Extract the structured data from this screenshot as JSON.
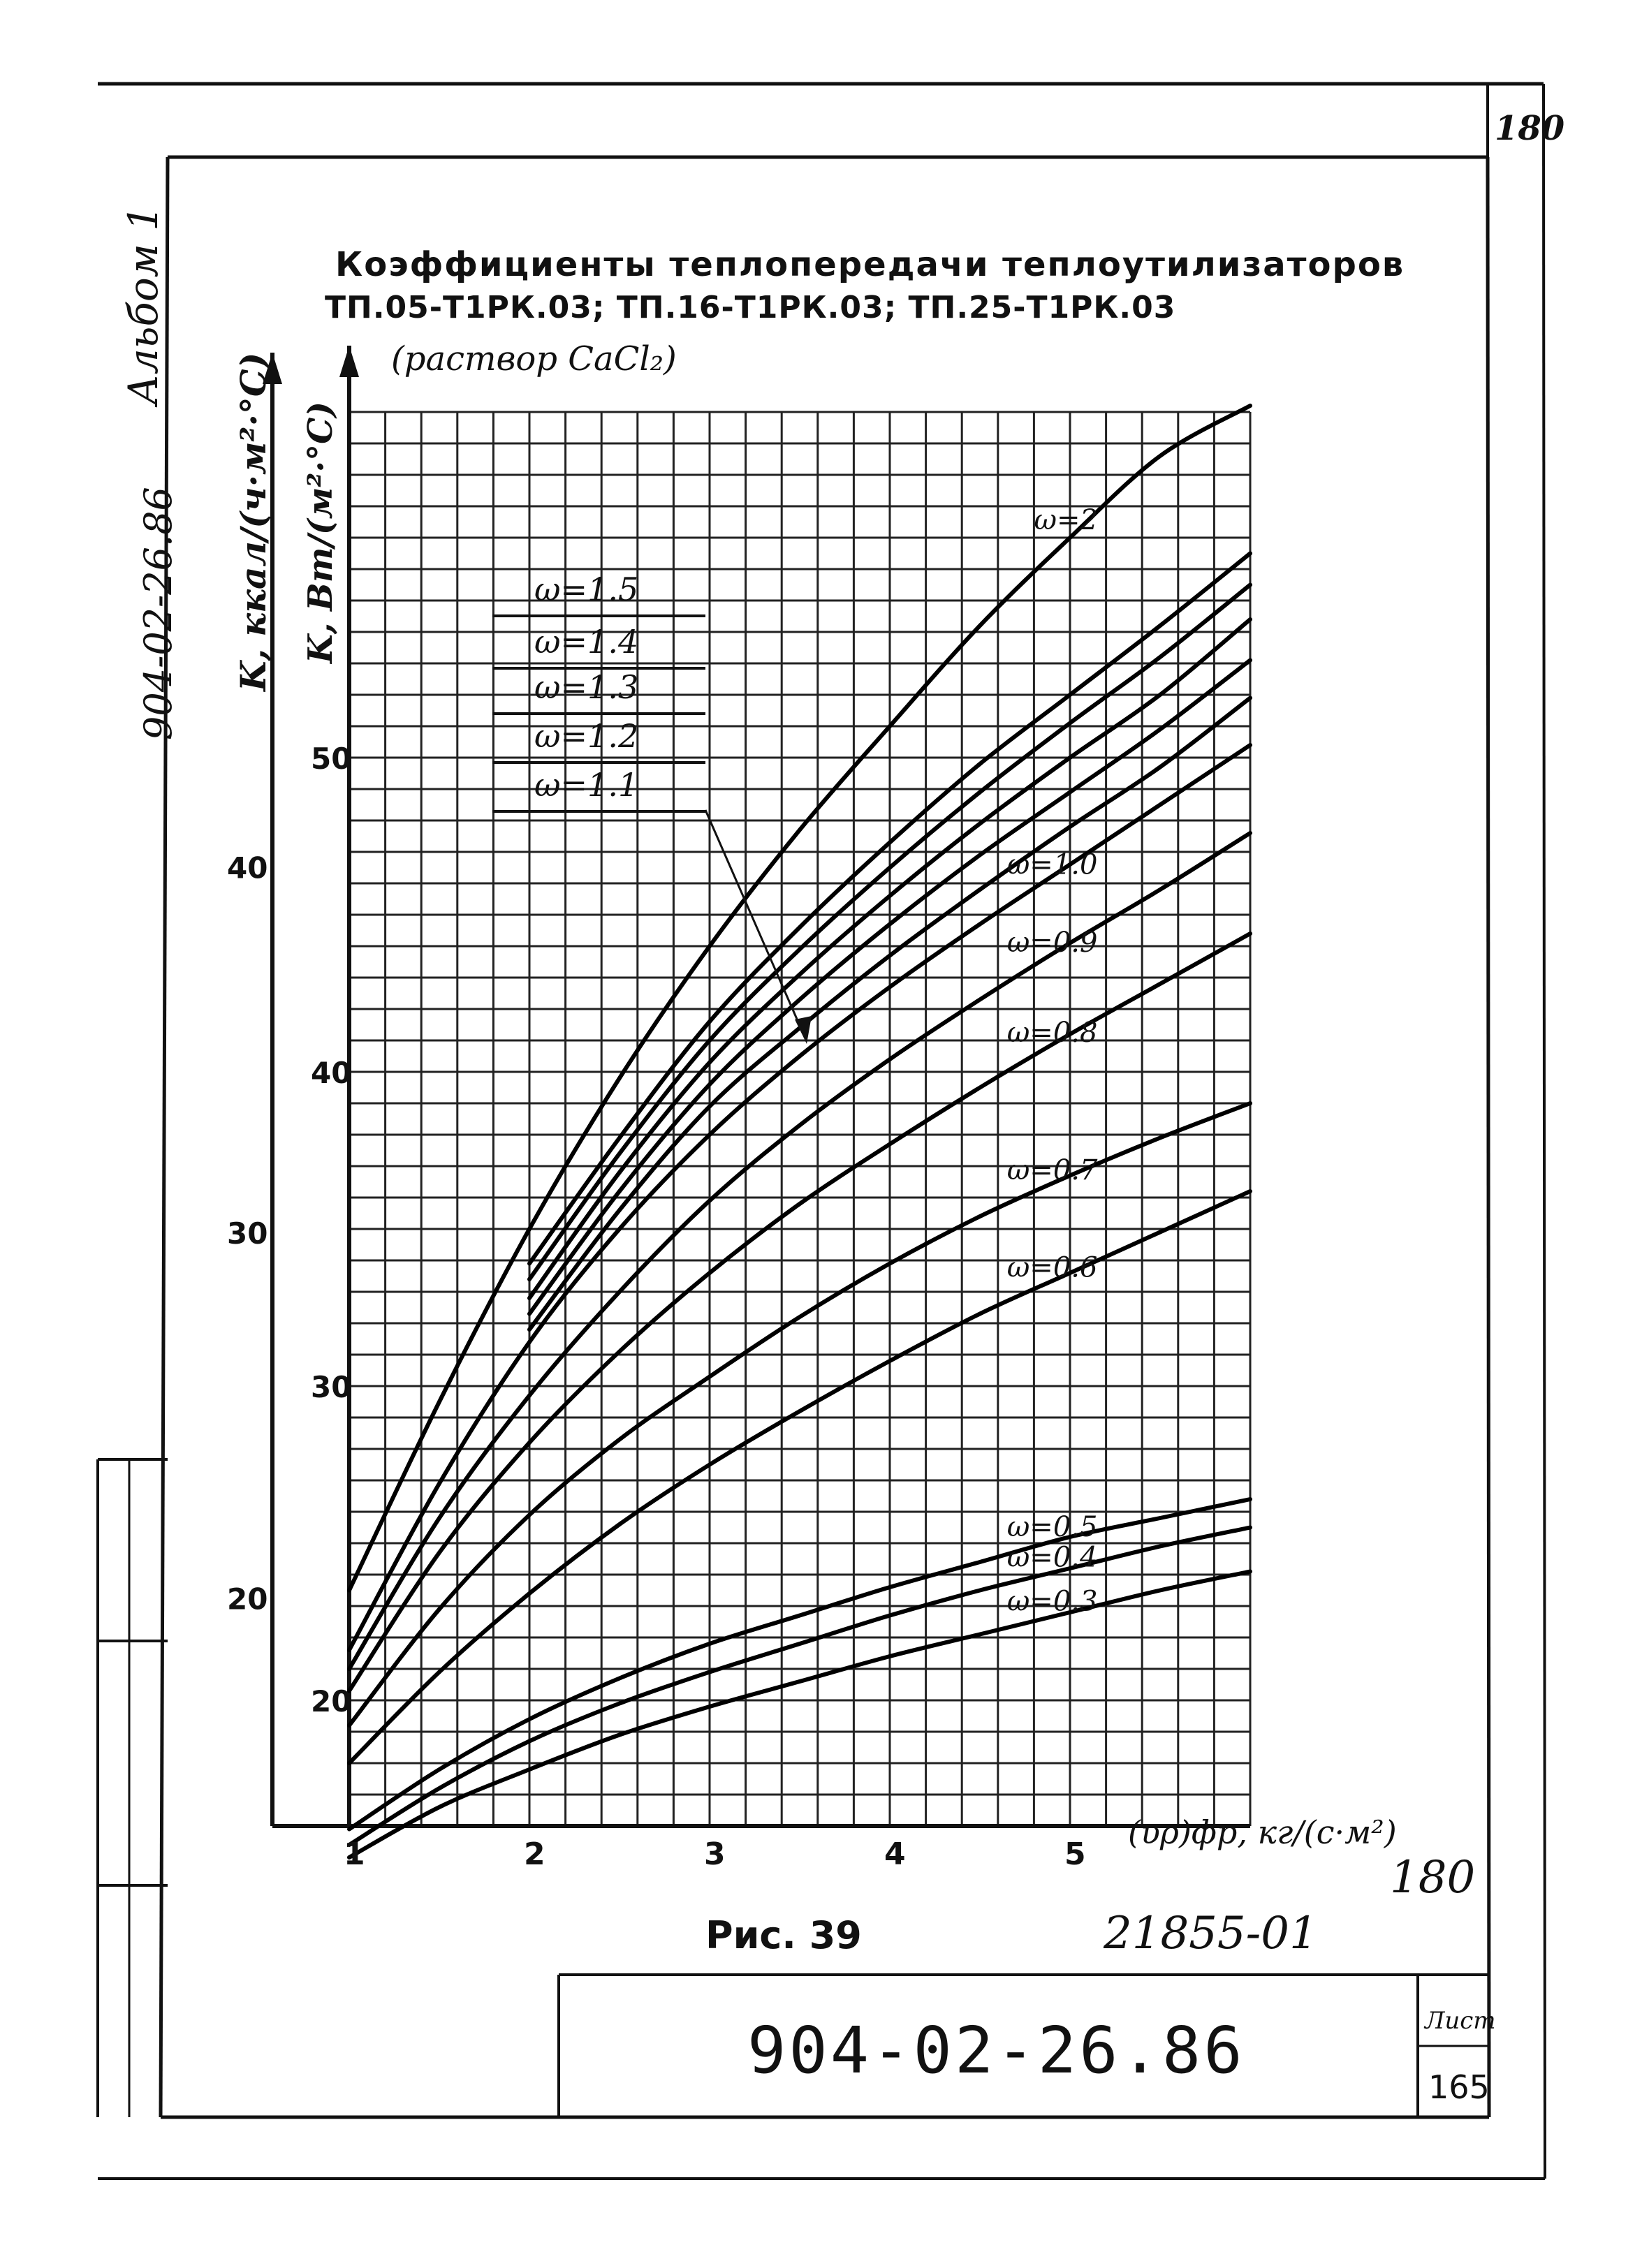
{
  "sheet": {
    "corner_number": "180",
    "album": "Альбом 1",
    "side_code": "904-02-26.86",
    "doc_code": "904-02-26.86",
    "list_label": "Лист",
    "list_number": "165",
    "inv_number": "21855-01",
    "handwritten_number": "180"
  },
  "chart_data": {
    "type": "line",
    "title": "Коэффициенты теплопередачи теплоутилизаторов",
    "subtitle": "ТП.05-Т1РК.03; ТП.16-Т1РК.03; ТП.25-Т1РК.03",
    "note": "(раствор CaCl₂)",
    "figure_label": "Рис. 39",
    "xlabel": "(υρ)фр, кг/(с·м²)",
    "ylabel_inner": "K, Вт/(м²·°C)",
    "ylabel_outer": "K, ккал/(ч·м²·°C)",
    "xlim": [
      1,
      6
    ],
    "ylim_w": [
      16,
      61
    ],
    "x_ticks": [
      "1",
      "2",
      "3",
      "4",
      "5"
    ],
    "y_ticks_w": [
      {
        "value": 20,
        "label": "20"
      },
      {
        "value": 30,
        "label": "30"
      },
      {
        "value": 40,
        "label": "40"
      },
      {
        "value": 50,
        "label": "50"
      }
    ],
    "y_ticks_kcal": [
      {
        "value": 20,
        "label": "20"
      },
      {
        "value": 30,
        "label": "30"
      },
      {
        "value": 40,
        "label": "40"
      }
    ],
    "grid": true,
    "series": [
      {
        "name": "ω=2",
        "x": [
          1,
          1.5,
          2,
          2.5,
          3,
          3.5,
          4,
          4.5,
          5,
          5.5,
          6
        ],
        "y": [
          23.5,
          29.5,
          35.0,
          39.8,
          44.0,
          47.7,
          51.0,
          54.2,
          57.0,
          59.6,
          61.2
        ]
      },
      {
        "name": "ω=1.5",
        "x": [
          2,
          2.5,
          3,
          3.5,
          4,
          4.5,
          5,
          5.5,
          6
        ],
        "y": [
          33.9,
          37.9,
          41.6,
          44.6,
          47.3,
          49.8,
          52.0,
          54.2,
          56.5
        ]
      },
      {
        "name": "ω=1.4",
        "x": [
          2,
          2.5,
          3,
          3.5,
          4,
          4.5,
          5,
          5.5,
          6
        ],
        "y": [
          33.4,
          37.4,
          41.0,
          43.9,
          46.5,
          48.9,
          51.1,
          53.2,
          55.5
        ]
      },
      {
        "name": "ω=1.3",
        "x": [
          2,
          2.5,
          3,
          3.5,
          4,
          4.5,
          5,
          5.5,
          6
        ],
        "y": [
          32.8,
          36.8,
          40.3,
          43.1,
          45.6,
          47.9,
          50.0,
          52.0,
          54.4
        ]
      },
      {
        "name": "ω=1.2",
        "x": [
          2,
          2.5,
          3,
          3.5,
          4,
          4.5,
          5,
          5.5,
          6
        ],
        "y": [
          32.3,
          36.2,
          39.6,
          42.3,
          44.7,
          46.9,
          48.9,
          50.9,
          53.1
        ]
      },
      {
        "name": "ω=1.1",
        "x": [
          2,
          2.5,
          3,
          3.5,
          4,
          4.5,
          5,
          5.5,
          6
        ],
        "y": [
          31.8,
          35.6,
          38.9,
          41.4,
          43.7,
          45.8,
          47.8,
          49.7,
          51.9
        ]
      },
      {
        "name": "ω=1.0",
        "x": [
          1,
          1.5,
          2,
          2.5,
          3,
          3.5,
          4,
          4.5,
          5,
          5.5,
          6
        ],
        "y": [
          21.6,
          26.9,
          31.4,
          35.0,
          38.0,
          40.5,
          42.7,
          44.7,
          46.6,
          48.5,
          50.4
        ]
      },
      {
        "name": "ω=0.9",
        "x": [
          1,
          1.5,
          2,
          2.5,
          3,
          3.5,
          4,
          4.5,
          5,
          5.5,
          6
        ],
        "y": [
          21.0,
          25.8,
          29.7,
          33.0,
          35.9,
          38.3,
          40.4,
          42.3,
          44.1,
          45.8,
          47.6
        ]
      },
      {
        "name": "ω=0.8",
        "x": [
          1,
          1.5,
          2,
          2.5,
          3,
          3.5,
          4,
          4.5,
          5,
          5.5,
          6
        ],
        "y": [
          20.3,
          24.7,
          28.2,
          31.1,
          33.6,
          35.8,
          37.7,
          39.5,
          41.2,
          42.8,
          44.4
        ]
      },
      {
        "name": "ω=0.7",
        "x": [
          1,
          1.5,
          2,
          2.5,
          3,
          3.5,
          4,
          4.5,
          5,
          5.5,
          6
        ],
        "y": [
          19.2,
          22.9,
          25.9,
          28.3,
          30.3,
          32.2,
          33.9,
          35.4,
          36.7,
          37.9,
          39.0
        ]
      },
      {
        "name": "ω=0.6",
        "x": [
          1,
          1.5,
          2,
          2.5,
          3,
          3.5,
          4,
          4.5,
          5,
          5.5,
          6
        ],
        "y": [
          18.0,
          20.9,
          23.4,
          25.6,
          27.5,
          29.2,
          30.8,
          32.3,
          33.6,
          34.9,
          36.2
        ]
      },
      {
        "name": "ω=0.5",
        "x": [
          1,
          1.5,
          2,
          2.5,
          3,
          3.5,
          4,
          4.5,
          5,
          5.5,
          6
        ],
        "y": [
          15.9,
          17.8,
          19.4,
          20.7,
          21.8,
          22.7,
          23.6,
          24.4,
          25.2,
          25.8,
          26.4
        ]
      },
      {
        "name": "ω=0.4",
        "x": [
          1,
          1.5,
          2,
          2.5,
          3,
          3.5,
          4,
          4.5,
          5,
          5.5,
          6
        ],
        "y": [
          15.4,
          17.2,
          18.7,
          19.9,
          20.9,
          21.8,
          22.7,
          23.5,
          24.2,
          24.9,
          25.5
        ]
      },
      {
        "name": "ω=0.3",
        "x": [
          1,
          1.5,
          2,
          2.5,
          3,
          3.5,
          4,
          4.5,
          5,
          5.5,
          6
        ],
        "y": [
          15.0,
          16.6,
          17.8,
          18.9,
          19.8,
          20.6,
          21.4,
          22.1,
          22.8,
          23.5,
          24.1
        ]
      }
    ],
    "curve_labels_left": [
      "ω=1.5",
      "ω=1.4",
      "ω=1.3",
      "ω=1.2",
      "ω=1.1"
    ],
    "curve_labels_right": [
      "ω=2",
      "ω=1.0",
      "ω=0.9",
      "ω=0.8",
      "ω=0.7",
      "ω=0.6",
      "ω=0.5",
      "ω=0.4",
      "ω=0.3"
    ]
  }
}
